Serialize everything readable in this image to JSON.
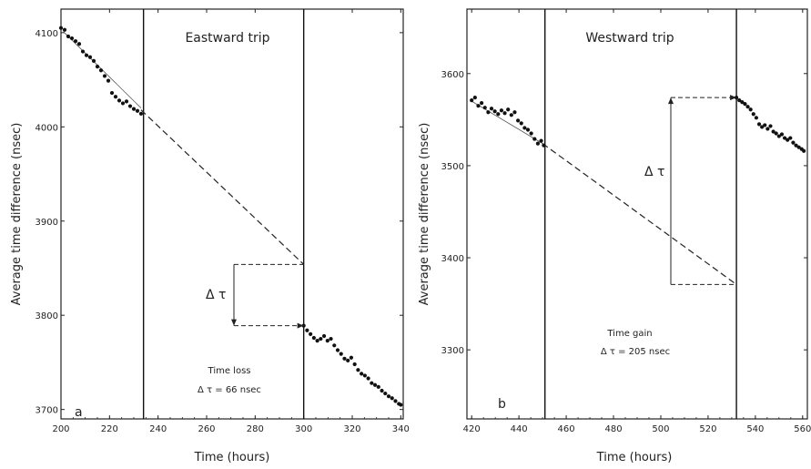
{
  "chart_data": [
    {
      "type": "scatter",
      "panel_label": "a",
      "title": "Eastward trip",
      "xlabel": "Time (hours)",
      "ylabel": "Average time difference (nsec)",
      "xlim": [
        200,
        341
      ],
      "ylim": [
        3690,
        4125
      ],
      "xticks": [
        200,
        220,
        240,
        260,
        280,
        300,
        320,
        340
      ],
      "yticks": [
        3700,
        3800,
        3900,
        4000,
        4100
      ],
      "trip_lines": [
        234,
        300
      ],
      "series": [
        {
          "name": "",
          "x": [
            200,
            201.5,
            203,
            204.5,
            206,
            207.5,
            209,
            210.5,
            212,
            213.5,
            215,
            216.5,
            218,
            219.5,
            221,
            222.5,
            224,
            225.5,
            227,
            228.5,
            230,
            231.5,
            233
          ],
          "y": [
            4105,
            4103,
            4096,
            4094,
            4091,
            4088,
            4080,
            4076,
            4074,
            4070,
            4064,
            4060,
            4054,
            4049,
            4036,
            4032,
            4028,
            4025,
            4027,
            4022,
            4019,
            4017,
            4014
          ]
        },
        {
          "name": "",
          "x": [
            300,
            301.4,
            302.8,
            304.2,
            305.6,
            307,
            308.4,
            309.8,
            311.2,
            312.6,
            314,
            315.4,
            316.8,
            318.2,
            319.6,
            321,
            322.4,
            323.8,
            325.2,
            326.6,
            328,
            329.4,
            330.8,
            332.2,
            333.6,
            335,
            336.4,
            337.8,
            339.2,
            340
          ],
          "y": [
            3789,
            3784,
            3780,
            3776,
            3773,
            3775,
            3778,
            3773,
            3775,
            3768,
            3763,
            3759,
            3754,
            3752,
            3755,
            3748,
            3742,
            3738,
            3736,
            3733,
            3728,
            3726,
            3724,
            3720,
            3717,
            3714,
            3712,
            3709,
            3706,
            3705
          ]
        }
      ],
      "trend_fit": [
        {
          "x": 201,
          "y": 4101
        },
        {
          "x": 233,
          "y": 4020
        }
      ],
      "extrapolation": [
        {
          "x": 233,
          "y": 4018
        },
        {
          "x": 300,
          "y": 3854
        }
      ],
      "delta_labels": {
        "delta": "Δ τ",
        "result_line1": "Time loss",
        "result_line2": "Δ τ = 66 nsec"
      }
    },
    {
      "type": "scatter",
      "panel_label": "b",
      "title": "Westward trip",
      "xlabel": "Time (hours)",
      "ylabel": "Average time difference (nsec)",
      "xlim": [
        418,
        562
      ],
      "ylim": [
        3225,
        3670
      ],
      "xticks": [
        420,
        440,
        460,
        480,
        500,
        520,
        540,
        560
      ],
      "yticks": [
        3300,
        3400,
        3500,
        3600
      ],
      "trip_lines": [
        451,
        532
      ],
      "series": [
        {
          "name": "",
          "x": [
            420,
            421.4,
            422.8,
            424.2,
            425.6,
            427,
            428.4,
            429.8,
            431.2,
            432.6,
            434,
            435.4,
            436.8,
            438.2,
            439.6,
            441,
            442.4,
            443.8,
            445.2,
            446.6,
            448,
            449.4,
            450.5
          ],
          "y": [
            3571,
            3574,
            3565,
            3568,
            3563,
            3558,
            3562,
            3559,
            3556,
            3560,
            3557,
            3561,
            3555,
            3558,
            3549,
            3546,
            3541,
            3539,
            3535,
            3529,
            3524,
            3527,
            3522
          ]
        },
        {
          "name": "",
          "x": [
            532,
            533.2,
            534.4,
            535.6,
            536.8,
            538,
            539.2,
            540.4,
            541.6,
            542.8,
            544,
            545.2,
            546.4,
            547.6,
            548.8,
            550,
            551.2,
            552.4,
            553.6,
            554.8,
            556,
            557.2,
            558.4,
            559.6,
            560.5
          ],
          "y": [
            3574,
            3571,
            3569,
            3567,
            3564,
            3561,
            3556,
            3552,
            3545,
            3542,
            3544,
            3540,
            3543,
            3537,
            3535,
            3532,
            3534,
            3530,
            3528,
            3530,
            3525,
            3522,
            3520,
            3518,
            3516
          ]
        }
      ],
      "trend_fit": [
        {
          "x": 420,
          "y": 3570
        },
        {
          "x": 450,
          "y": 3524
        }
      ],
      "extrapolation": [
        {
          "x": 450,
          "y": 3524
        },
        {
          "x": 532,
          "y": 3371
        }
      ],
      "delta_labels": {
        "delta": "Δ τ",
        "result_line1": "Time gain",
        "result_line2": "Δ τ = 205 nsec"
      }
    }
  ]
}
